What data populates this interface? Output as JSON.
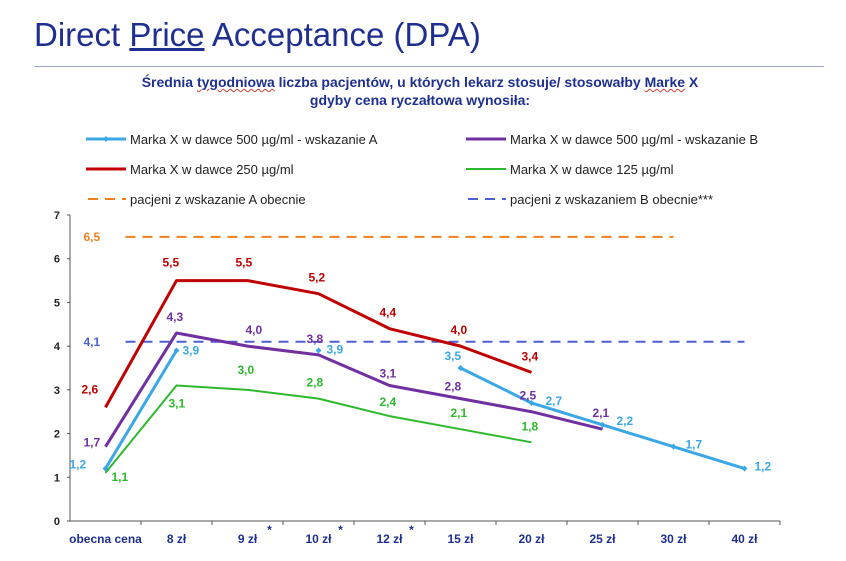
{
  "page": {
    "title_part1": "Direct ",
    "title_part2": "Price",
    "title_part3": " Acceptance (DPA)"
  },
  "chart_data": {
    "type": "line",
    "title_line1_a": "Średnia ",
    "title_line1_b": "tygodniowa",
    "title_line1_c": " liczba pacjentów, u których lekarz stosuje/ stosowałby ",
    "title_line1_d": "Marke",
    "title_line1_e": " X",
    "title_line2": "gdyby cena ryczałtowa wynosiła:",
    "categories": [
      "obecna cena",
      "8 zł",
      "9 zł",
      "10 zł",
      "12 zł",
      "15 zł",
      "20 zł",
      "25 zł",
      "30 zł",
      "40 zł"
    ],
    "category_marks": [
      "",
      "",
      "*",
      "*",
      "*",
      "",
      "",
      "",
      "",
      ""
    ],
    "ylim": [
      0,
      7
    ],
    "yticks": [
      "0",
      "1",
      "2",
      "3",
      "4",
      "5",
      "6",
      "7"
    ],
    "series": [
      {
        "name": "Marka X w dawce 500 µg/ml - wskazanie A",
        "color": "#3ba7e5",
        "marker": true,
        "segments": [
          {
            "x": [
              0,
              1
            ],
            "values": [
              1.2,
              3.9
            ]
          },
          {
            "x": [
              3
            ],
            "values": [
              3.9
            ]
          },
          {
            "x": [
              5,
              6,
              7,
              8,
              9
            ],
            "values": [
              3.5,
              2.7,
              2.2,
              1.7,
              1.2
            ]
          }
        ],
        "labels": [
          {
            "x": 0,
            "value": 1.2,
            "text": "1,2"
          },
          {
            "x": 1,
            "value": 3.9,
            "text": "3,9"
          },
          {
            "x": 3,
            "value": 3.9,
            "text": "3,9"
          },
          {
            "x": 5,
            "value": 3.5,
            "text": "3,5"
          },
          {
            "x": 6,
            "value": 2.7,
            "text": "2,7"
          },
          {
            "x": 7,
            "value": 2.2,
            "text": "2,2"
          },
          {
            "x": 8,
            "value": 1.7,
            "text": "1,7"
          },
          {
            "x": 9,
            "value": 1.2,
            "text": "1,2"
          }
        ]
      },
      {
        "name": "Marka X w dawce 500 µg/ml - wskazanie B",
        "color": "#7030a0",
        "marker": false,
        "segments": [
          {
            "x": [
              0,
              1,
              2,
              3,
              4,
              5,
              6,
              7
            ],
            "values": [
              1.7,
              4.3,
              4.0,
              3.8,
              3.1,
              2.8,
              2.5,
              2.1
            ]
          }
        ],
        "labels": [
          {
            "x": 0,
            "value": 1.7,
            "text": "1,7"
          },
          {
            "x": 1,
            "value": 4.3,
            "text": "4,3"
          },
          {
            "x": 2,
            "value": 4.0,
            "text": "4,0"
          },
          {
            "x": 3,
            "value": 3.8,
            "text": "3,8"
          },
          {
            "x": 4,
            "value": 3.1,
            "text": "3,1"
          },
          {
            "x": 5,
            "value": 2.8,
            "text": "2,8"
          },
          {
            "x": 6,
            "value": 2.5,
            "text": "2,5"
          },
          {
            "x": 7,
            "value": 2.1,
            "text": "2,1"
          }
        ]
      },
      {
        "name": "Marka X w dawce 250 µg/ml",
        "color": "#c00000",
        "marker": false,
        "segments": [
          {
            "x": [
              0,
              1,
              2,
              3,
              4,
              5,
              6
            ],
            "values": [
              2.6,
              5.5,
              5.5,
              5.2,
              4.4,
              4.0,
              3.4
            ]
          }
        ],
        "labels": [
          {
            "x": 0,
            "value": 2.6,
            "text": "2,6"
          },
          {
            "x": 1,
            "value": 5.5,
            "text": "5,5"
          },
          {
            "x": 2,
            "value": 5.5,
            "text": "5,5"
          },
          {
            "x": 3,
            "value": 5.2,
            "text": "5,2"
          },
          {
            "x": 4,
            "value": 4.4,
            "text": "4,4"
          },
          {
            "x": 5,
            "value": 4.0,
            "text": "4,0"
          },
          {
            "x": 6,
            "value": 3.4,
            "text": "3,4"
          }
        ]
      },
      {
        "name": "Marka X w dawce 125 µg/ml",
        "color": "#2eb82e",
        "marker": false,
        "segments": [
          {
            "x": [
              0,
              1,
              2,
              3,
              4,
              5,
              6
            ],
            "values": [
              1.1,
              3.1,
              3.0,
              2.8,
              2.4,
              2.1,
              1.8
            ]
          }
        ],
        "labels": [
          {
            "x": 0,
            "value": 1.1,
            "text": "1,1"
          },
          {
            "x": 1,
            "value": 3.1,
            "text": "3,1"
          },
          {
            "x": 2,
            "value": 3.0,
            "text": "3,0"
          },
          {
            "x": 3,
            "value": 2.8,
            "text": "2,8"
          },
          {
            "x": 4,
            "value": 2.4,
            "text": "2,4"
          },
          {
            "x": 5,
            "value": 2.1,
            "text": "2,1"
          },
          {
            "x": 6,
            "value": 1.8,
            "text": "1,8"
          }
        ]
      }
    ],
    "reference_lines": [
      {
        "name": "pacjeni z wskazanie A obecnie",
        "color": "#f07f1e",
        "value": 6.5,
        "label": "6,5",
        "x_from": 0,
        "x_to": 8
      },
      {
        "name": "pacjeni z wskazaniem B obecnie***",
        "color": "#4c5fd4",
        "value": 4.1,
        "label": "4,1",
        "x_from": 0,
        "x_to": 9
      }
    ]
  }
}
